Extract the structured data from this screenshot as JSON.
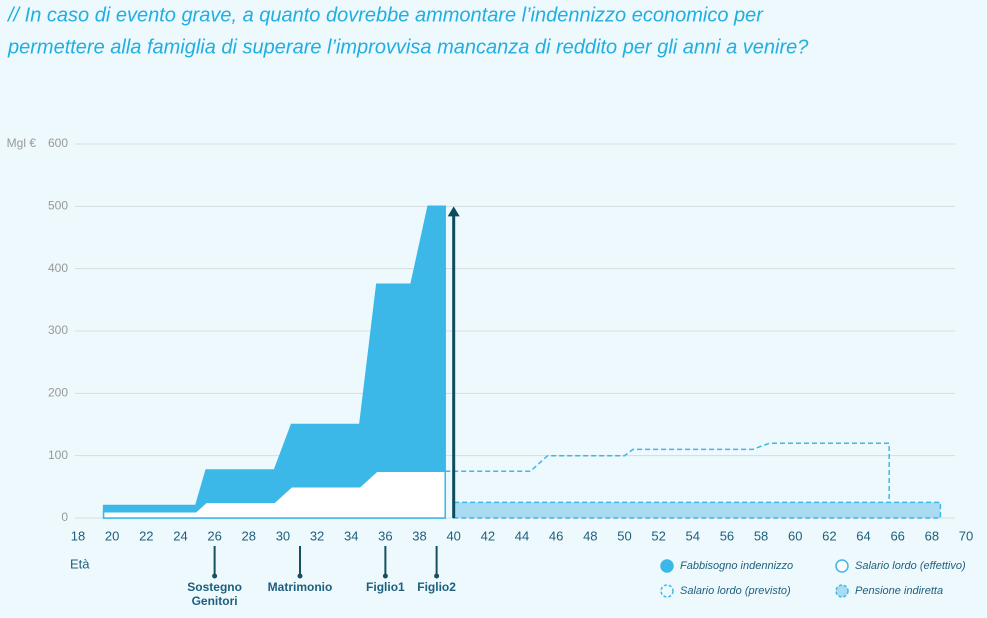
{
  "chart_data": {
    "type": "area",
    "title": [
      "// In caso di evento grave, a quanto dovrebbe ammontare l’indennizzo economico per",
      "permettere alla famiglia di superare l’improvvisa mancanza di reddito per gli anni a venire?"
    ],
    "y_unit": "Mgl €",
    "x_label": "Età",
    "xlim": [
      18,
      70
    ],
    "xticks": [
      18,
      20,
      22,
      24,
      26,
      28,
      30,
      32,
      34,
      36,
      38,
      40,
      42,
      44,
      46,
      48,
      50,
      52,
      54,
      56,
      58,
      60,
      62,
      64,
      66,
      68,
      70
    ],
    "ylim": [
      0,
      600
    ],
    "yticks": [
      0,
      100,
      200,
      300,
      400,
      500,
      600
    ],
    "grid": true,
    "series": [
      {
        "name": "Fabbisogno indennizzo",
        "color": "#3cb8e8",
        "fill": "#3cb8e8",
        "dashed": false,
        "x": [
          19.5,
          19.5,
          24.9,
          25.5,
          29.5,
          30.5,
          34.5,
          35.5,
          37.5,
          38.5,
          39.5,
          39.5
        ],
        "values": [
          0,
          20,
          20,
          77,
          77,
          150,
          150,
          375,
          375,
          500,
          500,
          0
        ]
      },
      {
        "name": "Salario lordo (effettivo)",
        "color": "#3cb8e8",
        "fill": "#ffffff",
        "dashed": false,
        "x": [
          19.5,
          19.5,
          24.9,
          25.5,
          29.5,
          30.5,
          34.5,
          35.5,
          39.5,
          39.5
        ],
        "values": [
          0,
          10,
          10,
          25,
          25,
          50,
          50,
          75,
          75,
          0
        ]
      },
      {
        "name": "Salario lordo (previsto)",
        "color": "#3cb8e8",
        "fill": "none",
        "dashed": true,
        "x": [
          39.5,
          44.5,
          45.5,
          50,
          50.5,
          57.5,
          58.5,
          65.5,
          65.5
        ],
        "values": [
          75,
          75,
          100,
          100,
          110,
          110,
          120,
          120,
          0
        ]
      },
      {
        "name": "Pensione indiretta",
        "color": "#3cb8e8",
        "fill": "#a9dcf3",
        "dashed": true,
        "x": [
          40,
          40,
          68.5,
          68.5
        ],
        "values": [
          0,
          25,
          25,
          0
        ]
      }
    ],
    "arrow": {
      "x": 40,
      "value": 500,
      "color": "#0d4b5d"
    },
    "events": [
      {
        "label": "Sostegno Genitori",
        "x": 26
      },
      {
        "label": "Matrimonio",
        "x": 31
      },
      {
        "label": "Figlio1",
        "x": 36
      },
      {
        "label": "Figlio2",
        "x": 39
      }
    ]
  }
}
